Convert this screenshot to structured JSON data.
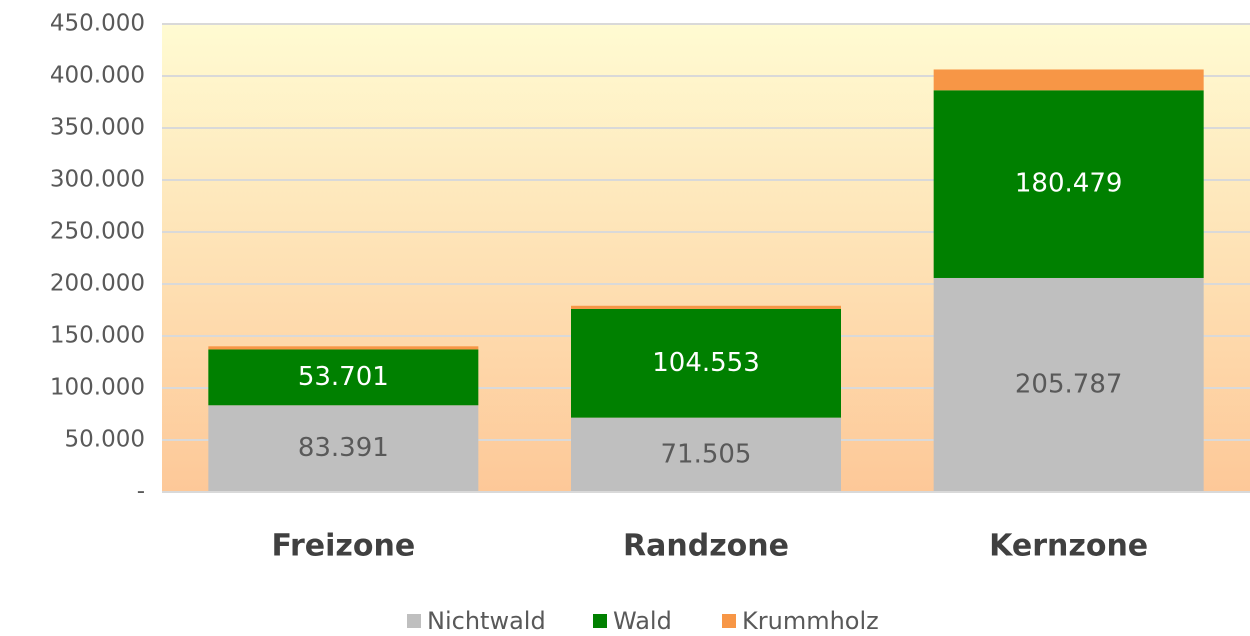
{
  "chart_data": {
    "type": "stacked_bar",
    "categories": [
      "Freizone",
      "Randzone",
      "Kernzone"
    ],
    "series": [
      {
        "name": "Nichtwald",
        "color": "#bfbfbf",
        "values": [
          83391,
          71505,
          205787
        ],
        "value_labels": [
          "83.391",
          "71.505",
          "205.787"
        ]
      },
      {
        "name": "Wald",
        "color": "#008000",
        "values": [
          53701,
          104553,
          180479
        ],
        "value_labels": [
          "53.701",
          "104.553",
          "180.479"
        ]
      },
      {
        "name": "Krummholz",
        "color": "#f79646",
        "values": [
          3000,
          3000,
          20000
        ]
      }
    ],
    "ylim": [
      0,
      450000
    ],
    "yticks": [
      {
        "value": 0,
        "label": "-"
      },
      {
        "value": 50000,
        "label": "50.000"
      },
      {
        "value": 100000,
        "label": "100.000"
      },
      {
        "value": 150000,
        "label": "150.000"
      },
      {
        "value": 200000,
        "label": "200.000"
      },
      {
        "value": 250000,
        "label": "250.000"
      },
      {
        "value": 300000,
        "label": "300.000"
      },
      {
        "value": 350000,
        "label": "350.000"
      },
      {
        "value": 400000,
        "label": "400.000"
      },
      {
        "value": 450000,
        "label": "450.000"
      }
    ],
    "grid": true,
    "legend": "bottom"
  }
}
